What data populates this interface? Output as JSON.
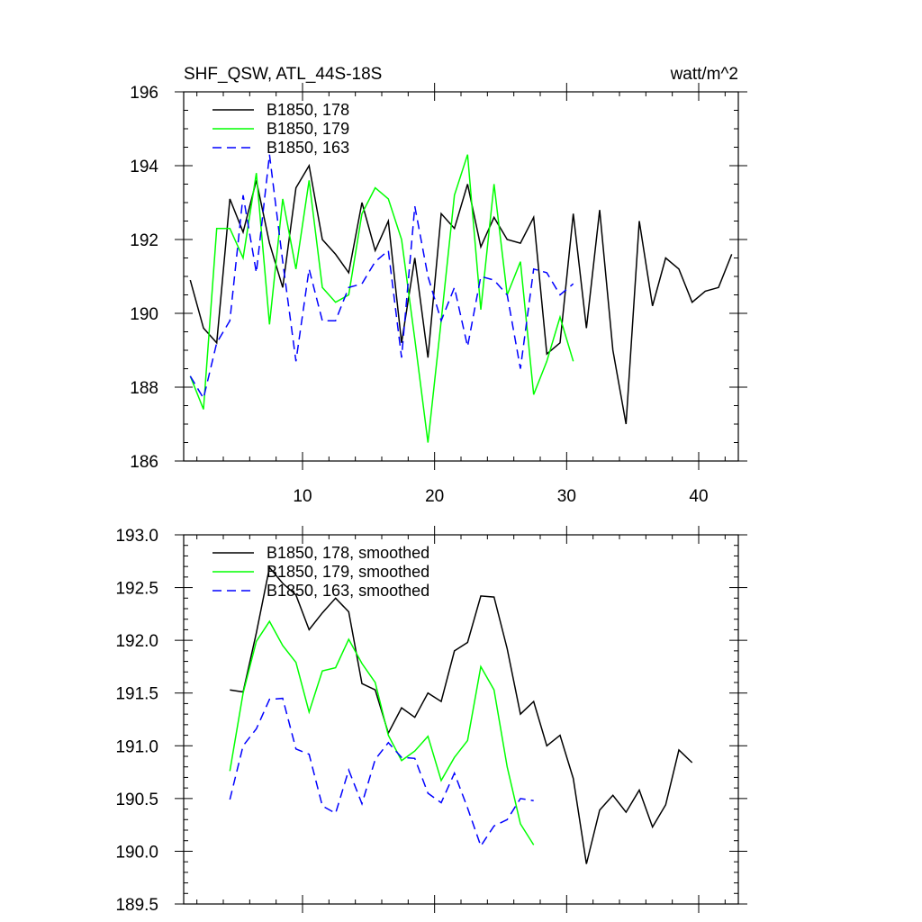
{
  "colors": {
    "black": "#000000",
    "green": "#00ff00",
    "blue": "#0000ff"
  },
  "chart_data": [
    {
      "type": "line",
      "title": "SHF_QSW, ATL_44S-18S",
      "units": "watt/m^2",
      "xlim": [
        1,
        43
      ],
      "ylim": [
        186,
        196
      ],
      "xticks": [
        10,
        20,
        30,
        40
      ],
      "xtick_labels": [
        "10",
        "20",
        "30",
        "40"
      ],
      "yticks": [
        186,
        188,
        190,
        192,
        194,
        196
      ],
      "ytick_labels": [
        "186",
        "188",
        "190",
        "192",
        "194",
        "196"
      ],
      "legend": "top-left",
      "series": [
        {
          "name": "B1850, 178",
          "color": "#000000",
          "dash": "solid",
          "x": [
            1.5,
            2.5,
            3.5,
            4.5,
            5.5,
            6.5,
            7.5,
            8.5,
            9.5,
            10.5,
            11.5,
            12.5,
            13.5,
            14.5,
            15.5,
            16.5,
            17.5,
            18.5,
            19.5,
            20.5,
            21.5,
            22.5,
            23.5,
            24.5,
            25.5,
            26.5,
            27.5,
            28.5,
            29.5,
            30.5,
            31.5,
            32.5,
            33.5,
            34.5,
            35.5,
            36.5,
            37.5,
            38.5,
            39.5,
            40.5,
            41.5,
            42.5
          ],
          "values": [
            190.9,
            189.6,
            189.2,
            193.1,
            192.2,
            193.6,
            191.9,
            190.7,
            193.4,
            194.0,
            192.0,
            191.6,
            191.1,
            193.0,
            191.7,
            192.5,
            189.2,
            191.5,
            188.8,
            192.7,
            192.3,
            193.5,
            191.8,
            192.6,
            192.0,
            191.9,
            192.6,
            188.9,
            189.2,
            192.7,
            189.6,
            192.8,
            189.0,
            187.0,
            192.5,
            190.2,
            191.5,
            191.2,
            190.3,
            190.6,
            190.7,
            191.6
          ]
        },
        {
          "name": "B1850, 179",
          "color": "#00ff00",
          "dash": "solid",
          "x": [
            1.5,
            2.5,
            3.5,
            4.5,
            5.5,
            6.5,
            7.5,
            8.5,
            9.5,
            10.5,
            11.5,
            12.5,
            13.5,
            14.5,
            15.5,
            16.5,
            17.5,
            18.5,
            19.5,
            20.5,
            21.5,
            22.5,
            23.5,
            24.5,
            25.5,
            26.5,
            27.5,
            28.5,
            29.5,
            30.5
          ],
          "values": [
            188.3,
            187.4,
            192.3,
            192.3,
            191.5,
            193.8,
            189.7,
            193.1,
            191.2,
            193.6,
            190.7,
            190.3,
            190.5,
            192.7,
            193.4,
            193.1,
            192.0,
            189.3,
            186.5,
            189.8,
            193.2,
            194.3,
            190.1,
            193.5,
            190.5,
            191.4,
            187.8,
            188.7,
            189.9,
            188.7
          ]
        },
        {
          "name": "B1850, 163",
          "color": "#0000ff",
          "dash": "dash",
          "x": [
            1.5,
            2.5,
            3.5,
            4.5,
            5.5,
            6.5,
            7.5,
            8.5,
            9.5,
            10.5,
            11.5,
            12.5,
            13.5,
            14.5,
            15.5,
            16.5,
            17.5,
            18.5,
            19.5,
            20.5,
            21.5,
            22.5,
            23.5,
            24.5,
            25.5,
            26.5,
            27.5,
            28.5,
            29.5,
            30.5
          ],
          "values": [
            188.3,
            187.7,
            189.2,
            189.8,
            193.2,
            191.1,
            194.3,
            191.4,
            188.7,
            191.2,
            189.8,
            189.8,
            190.7,
            190.8,
            191.4,
            191.7,
            188.8,
            192.9,
            191.0,
            189.8,
            190.7,
            189.1,
            191.0,
            190.9,
            190.5,
            188.5,
            191.2,
            191.1,
            190.5,
            190.8
          ]
        }
      ]
    },
    {
      "type": "line",
      "xlim": [
        1,
        43
      ],
      "ylim": [
        189.5,
        193.0
      ],
      "yticks": [
        189.5,
        190.0,
        190.5,
        191.0,
        191.5,
        192.0,
        192.5,
        193.0
      ],
      "ytick_labels": [
        "189.5",
        "190.0",
        "190.5",
        "191.0",
        "191.5",
        "192.0",
        "192.5",
        "193.0"
      ],
      "legend": "top-left",
      "series": [
        {
          "name": "B1850, 178, smoothed",
          "color": "#000000",
          "dash": "solid",
          "x": [
            4.5,
            5.5,
            6.5,
            7.5,
            8.5,
            9.5,
            10.5,
            11.5,
            12.5,
            13.5,
            14.5,
            15.5,
            16.5,
            17.5,
            18.5,
            19.5,
            20.5,
            21.5,
            22.5,
            23.5,
            24.5,
            25.5,
            26.5,
            27.5,
            28.5,
            29.5,
            30.5,
            31.5,
            32.5,
            33.5,
            34.5,
            35.5,
            36.5,
            37.5,
            38.5,
            39.5
          ],
          "values": [
            191.53,
            191.51,
            192.07,
            192.69,
            192.54,
            192.43,
            192.1,
            192.26,
            192.4,
            192.27,
            191.59,
            191.53,
            191.12,
            191.36,
            191.27,
            191.5,
            191.42,
            191.9,
            191.98,
            192.42,
            192.41,
            191.92,
            191.3,
            191.42,
            191.0,
            191.1,
            190.69,
            189.88,
            190.39,
            190.53,
            190.37,
            190.58,
            190.23,
            190.44,
            190.96,
            190.84
          ]
        },
        {
          "name": "B1850, 179, smoothed",
          "color": "#00ff00",
          "dash": "solid",
          "x": [
            4.5,
            5.5,
            6.5,
            7.5,
            8.5,
            9.5,
            10.5,
            11.5,
            12.5,
            13.5,
            14.5,
            15.5,
            16.5,
            17.5,
            18.5,
            19.5,
            20.5,
            21.5,
            22.5,
            23.5,
            24.5,
            25.5,
            26.5,
            27.5
          ],
          "values": [
            190.76,
            191.5,
            191.99,
            192.18,
            191.95,
            191.79,
            191.32,
            191.71,
            191.74,
            192.01,
            191.78,
            191.6,
            191.1,
            190.86,
            190.95,
            191.09,
            190.67,
            190.89,
            191.05,
            191.75,
            191.53,
            190.8,
            190.26,
            190.06
          ]
        },
        {
          "name": "B1850, 163, smoothed",
          "color": "#0000ff",
          "dash": "dash",
          "x": [
            4.5,
            5.5,
            6.5,
            7.5,
            8.5,
            9.5,
            10.5,
            11.5,
            12.5,
            13.5,
            14.5,
            15.5,
            16.5,
            17.5,
            18.5,
            19.5,
            20.5,
            21.5,
            22.5,
            23.5,
            24.5,
            25.5,
            26.5,
            27.5
          ],
          "values": [
            190.49,
            191.0,
            191.16,
            191.44,
            191.45,
            190.97,
            190.92,
            190.43,
            190.36,
            190.77,
            190.45,
            190.87,
            191.03,
            190.89,
            190.88,
            190.55,
            190.46,
            190.74,
            190.41,
            190.05,
            190.24,
            190.3,
            190.5,
            190.48
          ]
        }
      ]
    }
  ]
}
